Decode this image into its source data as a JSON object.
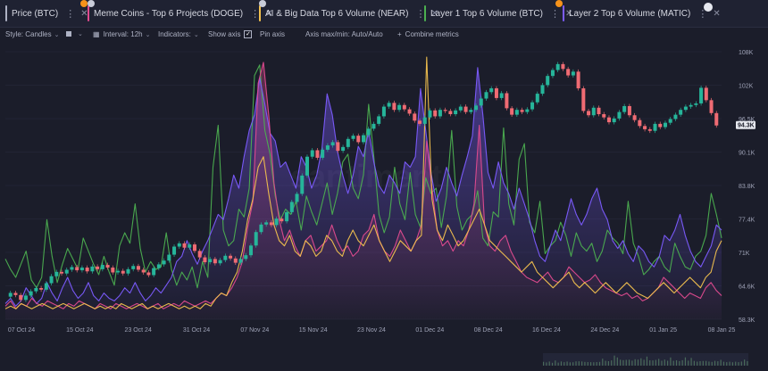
{
  "tabs": [
    {
      "label": "Price (BTC)",
      "color": "#aeb2c4",
      "badge": "#f7931a"
    },
    {
      "label": "Meme Coins - Top 6 Projects (DOGE)",
      "color": "#e04b8f",
      "badge": "#c9ccd8"
    },
    {
      "label": "AI & Big Data Top 6 Volume (NEAR)",
      "color": "#f2c14e",
      "badge": "#c9ccd8"
    },
    {
      "label": "Layer 1 Top 6 Volume (BTC)",
      "color": "#4caf50",
      "badge": ""
    },
    {
      "label": "Layer 2 Top 6 Volume (MATIC)",
      "color": "#7c5cff",
      "badge": "#f7931a"
    }
  ],
  "toolbar": {
    "style": "Style: Candles",
    "interval": "Interval: 12h",
    "indicators": "Indicators:",
    "show_axis": "Show axis",
    "pin_axis": "Pin axis",
    "axis_minmax": "Axis max/min: Auto/Auto",
    "combine": "Combine metrics"
  },
  "watermark": "santiment",
  "chart_data": {
    "type": "line",
    "y_ticks": [
      "108K",
      "102K",
      "96.5K",
      "90.1K",
      "83.8K",
      "77.4K",
      "71K",
      "64.6K",
      "58.3K"
    ],
    "y_range": [
      58300,
      108000
    ],
    "x_ticks": [
      "07 Oct 24",
      "15 Oct 24",
      "23 Oct 24",
      "31 Oct 24",
      "07 Nov 24",
      "15 Nov 24",
      "23 Nov 24",
      "01 Dec 24",
      "08 Dec 24",
      "16 Dec 24",
      "24 Dec 24",
      "01 Jan 25",
      "08 Jan 25"
    ],
    "last_price_label": "94.3K",
    "price": [
      62.5,
      63.2,
      62.8,
      61.9,
      62.7,
      63.5,
      64.1,
      63.8,
      65.0,
      66.3,
      67.1,
      66.8,
      67.5,
      68.0,
      67.4,
      67.9,
      67.2,
      68.1,
      67.6,
      68.4,
      67.9,
      67.0,
      67.3,
      66.8,
      67.6,
      68.2,
      67.5,
      67.0,
      66.5,
      67.8,
      68.5,
      69.2,
      70.3,
      71.8,
      72.4,
      71.6,
      72.2,
      71.0,
      69.8,
      68.9,
      69.5,
      68.7,
      69.3,
      70.1,
      69.6,
      68.8,
      69.5,
      70.2,
      72.0,
      74.5,
      75.9,
      76.3,
      75.8,
      77.0,
      76.5,
      78.2,
      80.1,
      81.6,
      85.0,
      88.5,
      89.7,
      88.3,
      89.8,
      90.6,
      91.2,
      89.6,
      90.3,
      91.8,
      92.4,
      91.2,
      92.5,
      93.7,
      94.6,
      96.0,
      97.8,
      98.5,
      97.2,
      98.1,
      97.3,
      96.5,
      95.2,
      94.6,
      95.8,
      97.1,
      96.0,
      97.2,
      97.0,
      96.4,
      97.1,
      97.8,
      96.8,
      97.2,
      98.0,
      99.3,
      100.5,
      101.2,
      99.4,
      100.3,
      97.5,
      96.3,
      97.2,
      96.8,
      97.3,
      98.6,
      100.2,
      101.8,
      103.5,
      104.6,
      105.7,
      104.8,
      103.6,
      104.3,
      101.2,
      97.0,
      96.2,
      97.6,
      96.4,
      95.8,
      94.9,
      95.6,
      96.8,
      97.9,
      96.2,
      95.3,
      94.2,
      93.6,
      93.3,
      94.6,
      94.0,
      94.8,
      95.5,
      96.3,
      97.2,
      97.8,
      98.1,
      98.4,
      101.3,
      99.0,
      96.6,
      94.3
    ],
    "series": [
      {
        "name": "Layer 1 Top 6 Volume (BTC)",
        "color": "#4caf50",
        "values": [
          0.23,
          0.19,
          0.16,
          0.21,
          0.26,
          0.15,
          0.12,
          0.16,
          0.38,
          0.24,
          0.14,
          0.21,
          0.27,
          0.23,
          0.19,
          0.31,
          0.26,
          0.21,
          0.17,
          0.24,
          0.18,
          0.13,
          0.28,
          0.33,
          0.29,
          0.44,
          0.27,
          0.18,
          0.22,
          0.19,
          0.2,
          0.33,
          0.19,
          0.13,
          0.18,
          0.15,
          0.2,
          0.12,
          0.22,
          0.16,
          0.58,
          0.74,
          0.34,
          0.28,
          0.3,
          0.42,
          0.39,
          0.5,
          0.93,
          0.97,
          0.72,
          0.63,
          0.47,
          0.38,
          0.42,
          0.4,
          0.45,
          0.34,
          0.47,
          0.41,
          0.36,
          0.44,
          0.52,
          0.4,
          0.48,
          0.6,
          0.63,
          0.5,
          0.46,
          0.55,
          0.82,
          0.62,
          0.4,
          0.33,
          0.39,
          0.58,
          0.44,
          0.38,
          0.56,
          0.4,
          0.35,
          0.54,
          0.48,
          0.5,
          0.35,
          0.47,
          0.72,
          0.43,
          0.34,
          0.38,
          0.4,
          0.49,
          0.31,
          0.28,
          0.41,
          0.39,
          0.73,
          0.44,
          0.36,
          0.61,
          0.67,
          0.37,
          0.33,
          0.45,
          0.25,
          0.28,
          0.3,
          0.37,
          0.32,
          0.24,
          0.33,
          0.28,
          0.26,
          0.29,
          0.22,
          0.26,
          0.34,
          0.31,
          0.29,
          0.25,
          0.45,
          0.29,
          0.24,
          0.17,
          0.19,
          0.22,
          0.24,
          0.2,
          0.18,
          0.29,
          0.24,
          0.2,
          0.19,
          0.24,
          0.26,
          0.32,
          0.48,
          0.4,
          0.31
        ]
      },
      {
        "name": "Layer 2 Top 6 Volume (MATIC)",
        "color": "#7c5cff",
        "values": [
          0.06,
          0.08,
          0.05,
          0.07,
          0.12,
          0.09,
          0.06,
          0.08,
          0.14,
          0.1,
          0.07,
          0.12,
          0.16,
          0.11,
          0.08,
          0.1,
          0.14,
          0.09,
          0.07,
          0.1,
          0.08,
          0.07,
          0.09,
          0.12,
          0.1,
          0.14,
          0.1,
          0.07,
          0.09,
          0.12,
          0.1,
          0.13,
          0.16,
          0.22,
          0.24,
          0.3,
          0.25,
          0.21,
          0.26,
          0.3,
          0.35,
          0.4,
          0.38,
          0.46,
          0.55,
          0.5,
          0.62,
          0.72,
          0.78,
          0.92,
          0.82,
          0.71,
          0.68,
          0.58,
          0.6,
          0.55,
          0.5,
          0.62,
          0.58,
          0.5,
          0.55,
          0.65,
          0.86,
          0.78,
          0.64,
          0.55,
          0.48,
          0.55,
          0.66,
          0.62,
          0.72,
          0.6,
          0.51,
          0.48,
          0.55,
          0.52,
          0.48,
          0.6,
          0.58,
          0.62,
          0.88,
          0.72,
          0.56,
          0.45,
          0.5,
          0.58,
          0.52,
          0.47,
          0.55,
          0.62,
          0.7,
          0.96,
          0.78,
          0.56,
          0.5,
          0.6,
          0.52,
          0.48,
          0.42,
          0.5,
          0.44,
          0.38,
          0.3,
          0.24,
          0.22,
          0.28,
          0.34,
          0.3,
          0.38,
          0.46,
          0.4,
          0.36,
          0.4,
          0.46,
          0.5,
          0.42,
          0.38,
          0.3,
          0.27,
          0.3,
          0.25,
          0.22,
          0.28,
          0.26,
          0.22,
          0.2,
          0.24,
          0.32,
          0.3,
          0.34,
          0.4,
          0.32,
          0.26,
          0.22,
          0.2,
          0.24,
          0.28,
          0.36,
          0.34
        ]
      },
      {
        "name": "Meme Coins - Top 6 Projects (DOGE)",
        "color": "#e04b8f",
        "values": [
          0.05,
          0.07,
          0.04,
          0.06,
          0.05,
          0.08,
          0.06,
          0.05,
          0.07,
          0.06,
          0.05,
          0.04,
          0.06,
          0.05,
          0.07,
          0.06,
          0.05,
          0.04,
          0.06,
          0.05,
          0.04,
          0.06,
          0.05,
          0.04,
          0.05,
          0.06,
          0.05,
          0.04,
          0.05,
          0.06,
          0.04,
          0.05,
          0.06,
          0.05,
          0.07,
          0.06,
          0.05,
          0.06,
          0.07,
          0.06,
          0.08,
          0.1,
          0.09,
          0.12,
          0.16,
          0.22,
          0.35,
          0.45,
          0.9,
          0.98,
          0.78,
          0.52,
          0.38,
          0.3,
          0.34,
          0.28,
          0.24,
          0.3,
          0.32,
          0.26,
          0.28,
          0.3,
          0.36,
          0.3,
          0.26,
          0.28,
          0.24,
          0.26,
          0.32,
          0.34,
          0.4,
          0.3,
          0.26,
          0.24,
          0.28,
          0.34,
          0.3,
          0.26,
          0.3,
          0.36,
          0.68,
          0.5,
          0.34,
          0.28,
          0.3,
          0.26,
          0.3,
          0.28,
          0.34,
          0.44,
          0.74,
          0.36,
          0.28,
          0.26,
          0.3,
          0.32,
          0.26,
          0.22,
          0.18,
          0.16,
          0.15,
          0.14,
          0.16,
          0.18,
          0.15,
          0.14,
          0.16,
          0.2,
          0.18,
          0.16,
          0.14,
          0.15,
          0.17,
          0.14,
          0.12,
          0.11,
          0.1,
          0.09,
          0.1,
          0.08,
          0.09,
          0.07,
          0.08,
          0.1,
          0.12,
          0.16,
          0.14,
          0.12,
          0.1,
          0.08,
          0.1,
          0.09,
          0.08,
          0.12,
          0.14,
          0.11,
          0.09
        ]
      },
      {
        "name": "AI & Big Data Top 6 Volume (NEAR)",
        "color": "#f2c14e",
        "values": [
          0.04,
          0.05,
          0.04,
          0.06,
          0.05,
          0.04,
          0.05,
          0.06,
          0.05,
          0.04,
          0.05,
          0.06,
          0.05,
          0.04,
          0.05,
          0.06,
          0.05,
          0.04,
          0.05,
          0.04,
          0.05,
          0.04,
          0.06,
          0.05,
          0.04,
          0.05,
          0.06,
          0.04,
          0.05,
          0.04,
          0.05,
          0.06,
          0.05,
          0.04,
          0.05,
          0.04,
          0.05,
          0.04,
          0.06,
          0.05,
          0.08,
          0.1,
          0.09,
          0.14,
          0.18,
          0.26,
          0.38,
          0.46,
          0.58,
          0.62,
          0.48,
          0.36,
          0.3,
          0.28,
          0.32,
          0.26,
          0.24,
          0.3,
          0.28,
          0.24,
          0.26,
          0.32,
          0.3,
          0.26,
          0.24,
          0.3,
          0.34,
          0.3,
          0.28,
          0.32,
          0.36,
          0.3,
          0.26,
          0.22,
          0.26,
          0.3,
          0.28,
          0.26,
          0.3,
          0.32,
          1.0,
          0.46,
          0.34,
          0.3,
          0.36,
          0.32,
          0.28,
          0.3,
          0.34,
          0.38,
          0.42,
          0.36,
          0.3,
          0.28,
          0.26,
          0.24,
          0.22,
          0.2,
          0.18,
          0.2,
          0.22,
          0.18,
          0.16,
          0.14,
          0.12,
          0.14,
          0.16,
          0.18,
          0.14,
          0.12,
          0.14,
          0.12,
          0.1,
          0.12,
          0.14,
          0.12,
          0.1,
          0.12,
          0.14,
          0.12,
          0.1,
          0.09,
          0.08,
          0.1,
          0.12,
          0.14,
          0.12,
          0.1,
          0.12,
          0.14,
          0.16,
          0.14,
          0.12,
          0.16,
          0.18,
          0.26,
          0.3
        ]
      }
    ]
  }
}
